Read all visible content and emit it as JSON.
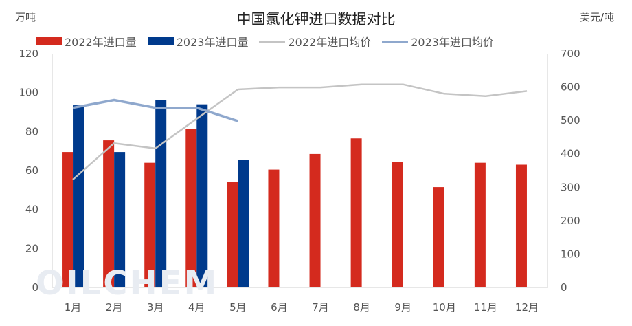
{
  "chart_data": {
    "type": "bar",
    "title": "中国氯化钾进口数据对比",
    "y_left_unit": "万吨",
    "y_right_unit": "美元/吨",
    "categories": [
      "1月",
      "2月",
      "3月",
      "4月",
      "5月",
      "6月",
      "7月",
      "8月",
      "9月",
      "10月",
      "11月",
      "12月"
    ],
    "y_left_lim": [
      0,
      120
    ],
    "y_left_ticks": [
      "0",
      "20",
      "40",
      "60",
      "80",
      "100",
      "120"
    ],
    "y_right_lim": [
      0,
      700
    ],
    "y_right_ticks": [
      "0",
      "100",
      "200",
      "300",
      "400",
      "500",
      "600",
      "700"
    ],
    "grid": false,
    "legend_position": "top",
    "series": [
      {
        "name": "2022年进口量",
        "kind": "bar",
        "axis": "left",
        "color": "#d42a1e",
        "values": [
          69.5,
          75.5,
          64,
          81.5,
          54,
          60.5,
          68.5,
          76.5,
          64.5,
          51.5,
          64,
          63
        ]
      },
      {
        "name": "2023年进口量",
        "kind": "bar",
        "axis": "left",
        "color": "#003a8c",
        "values": [
          93.5,
          69.5,
          96,
          94,
          65.5,
          null,
          null,
          null,
          null,
          null,
          null,
          null
        ]
      },
      {
        "name": "2022年进口均价",
        "kind": "line",
        "axis": "right",
        "color": "#c4c4c4",
        "values": [
          323,
          432,
          416,
          505,
          593,
          599,
          599,
          608,
          608,
          580,
          573,
          588
        ]
      },
      {
        "name": "2023年进口均价",
        "kind": "line",
        "axis": "right",
        "color": "#8fa8cd",
        "values": [
          538,
          561,
          538,
          538,
          498,
          null,
          null,
          null,
          null,
          null,
          null,
          null
        ]
      }
    ],
    "watermark": "OILCHEM"
  }
}
